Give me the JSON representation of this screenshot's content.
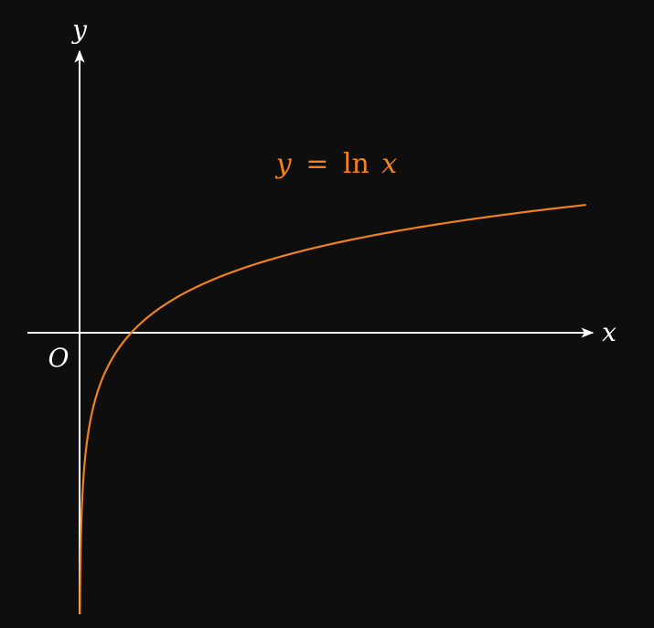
{
  "colors": {
    "background": "#0e0e0e",
    "axes": "#ffffff",
    "curve": "#f0821e"
  },
  "chart_data": {
    "type": "line",
    "function": "ln(x)",
    "xlabel": "x",
    "ylabel": "y",
    "origin_label": "O",
    "annotation": {
      "var": "y",
      "eq": "=",
      "fn": "ln",
      "arg": "x"
    },
    "xlim": [
      -1,
      10
    ],
    "ylim": [
      -5.2,
      5.35
    ],
    "grid": false,
    "series": [
      {
        "x": [
          0.005,
          0.01,
          0.02,
          0.05,
          0.1,
          0.2,
          0.3,
          0.5,
          0.7,
          1,
          1.5,
          2,
          3,
          4,
          5,
          6,
          7,
          8,
          9,
          9.8
        ],
        "y": [
          -5.3,
          -4.61,
          -3.91,
          -3.0,
          -2.3,
          -1.61,
          -1.2,
          -0.69,
          -0.36,
          0,
          0.41,
          0.69,
          1.1,
          1.39,
          1.61,
          1.79,
          1.95,
          2.08,
          2.2,
          2.28
        ]
      }
    ]
  }
}
